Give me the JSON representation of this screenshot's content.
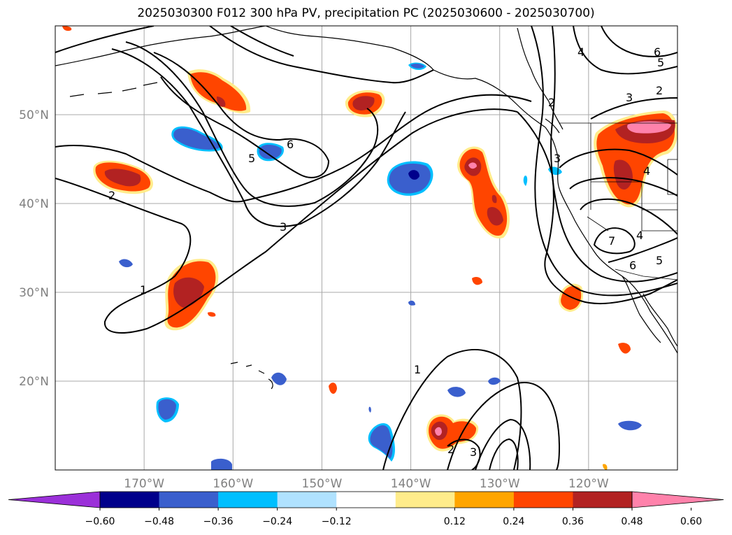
{
  "title": "2025030300 F012 300 hPa PV, precipitation PC (2025030600 - 2025030700)",
  "map": {
    "projection": "PlateCarree",
    "extent_lon": [
      -180,
      -110
    ],
    "extent_lat": [
      10,
      60
    ],
    "gridlines": true,
    "lat_labels": [
      {
        "lat": 50,
        "text": "50°N"
      },
      {
        "lat": 40,
        "text": "40°N"
      },
      {
        "lat": 30,
        "text": "30°N"
      },
      {
        "lat": 20,
        "text": "20°N"
      }
    ],
    "lon_labels": [
      {
        "lon": -170,
        "text": "170°W"
      },
      {
        "lon": -160,
        "text": "160°W"
      },
      {
        "lon": -150,
        "text": "150°W"
      },
      {
        "lon": -140,
        "text": "140°W"
      },
      {
        "lon": -130,
        "text": "130°W"
      },
      {
        "lon": -120,
        "text": "120°W"
      }
    ],
    "contour_labels": [
      "1",
      "2",
      "3",
      "4",
      "5",
      "6",
      "7"
    ],
    "colorbar": {
      "ticks": [
        "−0.60",
        "−0.48",
        "−0.36",
        "−0.24",
        "−0.12",
        "0.12",
        "0.24",
        "0.36",
        "0.48",
        "0.60"
      ],
      "colors": [
        "#9b30d9",
        "#00008b",
        "#3a5fcd",
        "#00bfff",
        "#b0e2ff",
        "#ffffff",
        "#ffec8b",
        "#ffa500",
        "#ff4500",
        "#b22222",
        "#ff82ab"
      ],
      "extend": "both"
    }
  }
}
